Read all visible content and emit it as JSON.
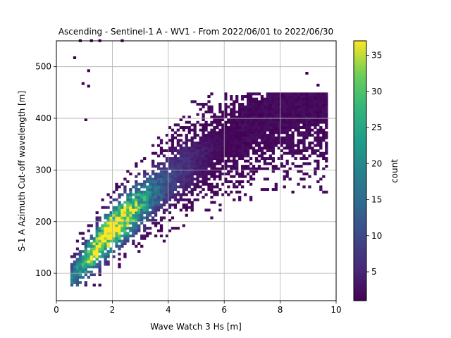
{
  "chart_data": {
    "type": "heatmap",
    "title": "Ascending - Sentinel-1 A - WV1 - From 2022/06/01 to 2022/06/30",
    "xlabel": "Wave Watch 3 Hs [m]",
    "ylabel": "S-1 A Azimuth Cut-off wavelength [m]",
    "xlim": [
      0,
      10
    ],
    "ylim": [
      47,
      550
    ],
    "xticks": [
      0,
      2,
      4,
      6,
      8,
      10
    ],
    "yticks": [
      100,
      200,
      300,
      400,
      500
    ],
    "grid": true,
    "bin_size": {
      "x": 0.1,
      "y": 5
    },
    "colorbar": {
      "label": "count",
      "range": [
        1,
        37
      ],
      "ticks": [
        5,
        10,
        15,
        20,
        25,
        30,
        35
      ],
      "colormap": "viridis"
    },
    "density_model": {
      "description": "approximate 2D histogram of Hs vs azimuth cut-off",
      "ridge_points": [
        [
          0.6,
          95
        ],
        [
          1.8,
          175
        ],
        [
          3.0,
          235
        ],
        [
          4.5,
          300
        ],
        [
          6.0,
          355
        ],
        [
          7.5,
          400
        ],
        [
          9.0,
          430
        ]
      ],
      "peak": {
        "hs": 1.8,
        "cutoff": 175,
        "count": 37
      }
    },
    "outliers": [
      [
        0.6,
        515
      ],
      [
        0.9,
        465
      ],
      [
        1.1,
        490
      ],
      [
        1.1,
        460
      ],
      [
        1.0,
        395
      ],
      [
        0.8,
        548
      ],
      [
        1.2,
        548
      ],
      [
        1.5,
        548
      ],
      [
        2.3,
        548
      ],
      [
        8.9,
        485
      ],
      [
        9.3,
        462
      ],
      [
        8.0,
        442
      ],
      [
        9.5,
        423
      ],
      [
        8.6,
        403
      ],
      [
        8.8,
        385
      ],
      [
        7.8,
        377
      ]
    ]
  },
  "colors": {
    "grid": "#b0b0b0",
    "axis": "#000000",
    "background": "#ffffff"
  }
}
